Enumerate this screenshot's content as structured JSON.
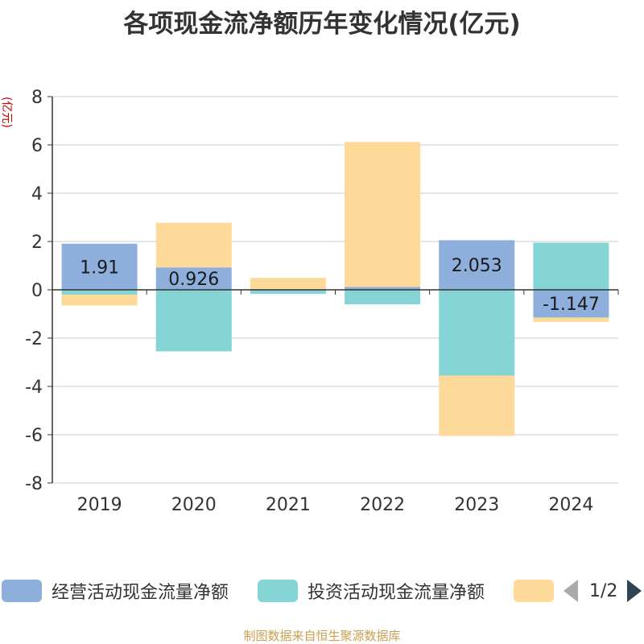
{
  "title": "各项现金流净额历年变化情况(亿元)",
  "unit_label": "(亿元)",
  "source": "制图数据来自恒生聚源数据库",
  "pager": {
    "indicator": "1/2"
  },
  "colors": {
    "operating": "#8eaedc",
    "investing": "#85d5d7",
    "financing": "#fdd99a",
    "grid": "#cccccc",
    "axis": "#333333"
  },
  "chart_data": {
    "type": "bar",
    "stacked": true,
    "categories": [
      "2019",
      "2020",
      "2021",
      "2022",
      "2023",
      "2024"
    ],
    "ylim": [
      -8,
      8
    ],
    "yticks": [
      8,
      6,
      4,
      2,
      0,
      -2,
      -4,
      -6,
      -8
    ],
    "grid": true,
    "legend_position": "bottom",
    "series": [
      {
        "name": "经营活动现金流量净额",
        "color_key": "operating",
        "values": [
          1.91,
          0.926,
          0.011,
          0.118,
          2.053,
          -1.147
        ],
        "labels": [
          "1.91",
          "0.926",
          "",
          "",
          "2.053",
          "-1.147"
        ]
      },
      {
        "name": "投资活动现金流量净额",
        "color_key": "investing",
        "values": [
          -0.2,
          -2.55,
          -0.17,
          -0.6,
          -3.55,
          1.95
        ]
      },
      {
        "name": "",
        "color_key": "financing",
        "values": [
          -0.45,
          1.85,
          0.48,
          6.0,
          -2.5,
          -0.18
        ]
      }
    ]
  }
}
